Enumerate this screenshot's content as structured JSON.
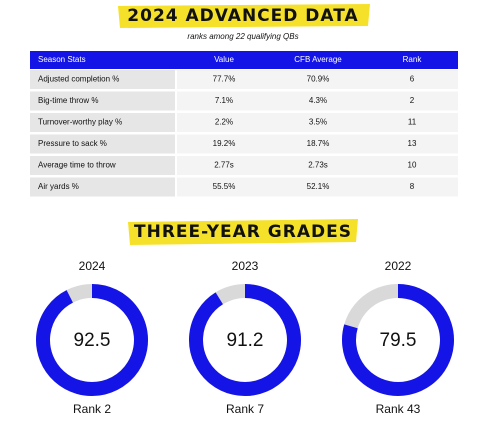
{
  "header": {
    "title": "2024 ADVANCED DATA",
    "subtitle": "ranks among 22 qualifying QBs"
  },
  "table": {
    "columns": [
      "Season Stats",
      "Value",
      "CFB Average",
      "Rank"
    ],
    "rows": [
      [
        "Adjusted completion %",
        "77.7%",
        "70.9%",
        "6"
      ],
      [
        "Big-time throw %",
        "7.1%",
        "4.3%",
        "2"
      ],
      [
        "Turnover-worthy play %",
        "2.2%",
        "3.5%",
        "11"
      ],
      [
        "Pressure to sack %",
        "19.2%",
        "18.7%",
        "13"
      ],
      [
        "Average time to throw",
        "2.77s",
        "2.73s",
        "10"
      ],
      [
        "Air yards %",
        "55.5%",
        "52.1%",
        "8"
      ]
    ]
  },
  "grades_title": "THREE-YEAR GRADES",
  "chart_data": [
    {
      "type": "donut",
      "title": "2024",
      "value": 92.5,
      "caption": "Rank 2",
      "ylim": [
        0,
        100
      ],
      "color": "#1414e6",
      "track_color": "#d9d9d9"
    },
    {
      "type": "donut",
      "title": "2023",
      "value": 91.2,
      "caption": "Rank 7",
      "ylim": [
        0,
        100
      ],
      "color": "#1414e6",
      "track_color": "#d9d9d9"
    },
    {
      "type": "donut",
      "title": "2022",
      "value": 79.5,
      "caption": "Rank 43",
      "ylim": [
        0,
        100
      ],
      "color": "#1414e6",
      "track_color": "#d9d9d9"
    }
  ]
}
